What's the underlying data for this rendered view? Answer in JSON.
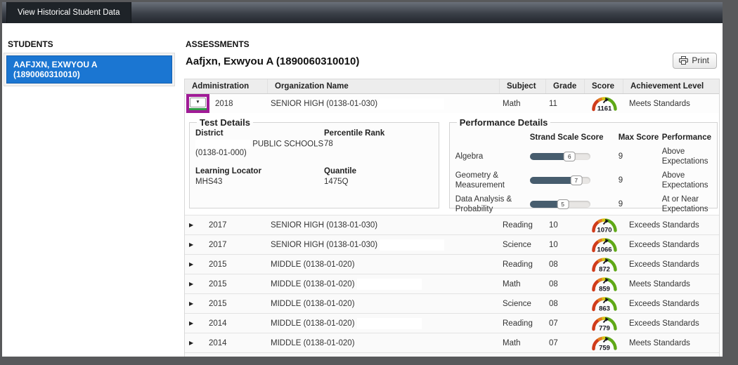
{
  "header": {
    "tab_label": "View Historical Student Data"
  },
  "sidebar": {
    "title": "STUDENTS",
    "students": [
      {
        "name": "AAFJXN, EXWYOU A (1890060310010)",
        "selected": true
      }
    ]
  },
  "main": {
    "title": "ASSESSMENTS",
    "student_header": "Aafjxn, Exwyou A (1890060310010)",
    "print_label": "Print",
    "table": {
      "columns": [
        "Administration",
        "Organization Name",
        "Subject",
        "Grade",
        "Score",
        "Achievement Level"
      ],
      "rows": [
        {
          "administration": "2018",
          "organization": "SENIOR HIGH (0138-01-030)",
          "subject": "Math",
          "grade": "11",
          "score": "1161",
          "achievement": "Meets Standards",
          "expanded": true,
          "redacted": true
        },
        {
          "administration": "2017",
          "organization": "SENIOR HIGH (0138-01-030)",
          "subject": "Reading",
          "grade": "10",
          "score": "1070",
          "achievement": "Exceeds Standards",
          "expanded": false,
          "redacted": false
        },
        {
          "administration": "2017",
          "organization": "SENIOR HIGH (0138-01-030)",
          "subject": "Science",
          "grade": "10",
          "score": "1066",
          "achievement": "Exceeds Standards",
          "expanded": false,
          "redacted": true
        },
        {
          "administration": "2015",
          "organization": "MIDDLE (0138-01-020)",
          "subject": "Reading",
          "grade": "08",
          "score": "872",
          "achievement": "Exceeds Standards",
          "expanded": false,
          "redacted": false
        },
        {
          "administration": "2015",
          "organization": "MIDDLE (0138-01-020)",
          "subject": "Math",
          "grade": "08",
          "score": "859",
          "achievement": "Meets Standards",
          "expanded": false,
          "redacted": true
        },
        {
          "administration": "2015",
          "organization": "MIDDLE (0138-01-020)",
          "subject": "Science",
          "grade": "08",
          "score": "863",
          "achievement": "Exceeds Standards",
          "expanded": false,
          "redacted": false
        },
        {
          "administration": "2014",
          "organization": "MIDDLE (0138-01-020)",
          "subject": "Reading",
          "grade": "07",
          "score": "779",
          "achievement": "Exceeds Standards",
          "expanded": false,
          "redacted": true
        },
        {
          "administration": "2014",
          "organization": "MIDDLE (0138-01-020)",
          "subject": "Math",
          "grade": "07",
          "score": "759",
          "achievement": "Meets Standards",
          "expanded": false,
          "redacted": false
        }
      ]
    },
    "details": {
      "test_details": {
        "legend": "Test Details",
        "district": {
          "label": "District",
          "value_line1": "PUBLIC SCHOOLS",
          "value_line2": "(0138-01-000)"
        },
        "percentile_rank": {
          "label": "Percentile Rank",
          "value": "78"
        },
        "learning_locator": {
          "label": "Learning Locator",
          "value": "MHS43"
        },
        "quantile": {
          "label": "Quantile",
          "value": "1475Q"
        }
      },
      "performance_details": {
        "legend": "Performance Details",
        "columns": [
          "Strand Scale Score",
          "Max Score",
          "Performance"
        ],
        "strands": [
          {
            "name": "Algebra",
            "scale_score": 6,
            "max_score": 9,
            "performance": "Above Expectations"
          },
          {
            "name": "Geometry & Measurement",
            "scale_score": 7,
            "max_score": 9,
            "performance": "Above Expectations"
          },
          {
            "name": "Data Analysis & Probability",
            "scale_score": 5,
            "max_score": 9,
            "performance": "At or Near Expectations"
          }
        ]
      }
    }
  },
  "icons": {
    "expand_collapsed": "▶",
    "expand_expanded": "▼"
  },
  "colors": {
    "selected_student_bg": "#1b76d2",
    "highlight_purple": "#a01b96",
    "highlight_green": "#2f9e44",
    "slider_fill": "#475d6e",
    "gauge_red": "#d03c1b",
    "gauge_orange": "#e07a20",
    "gauge_yellow": "#d6c50f",
    "gauge_green": "#5fa817",
    "gauge_needle": "#15151f"
  }
}
